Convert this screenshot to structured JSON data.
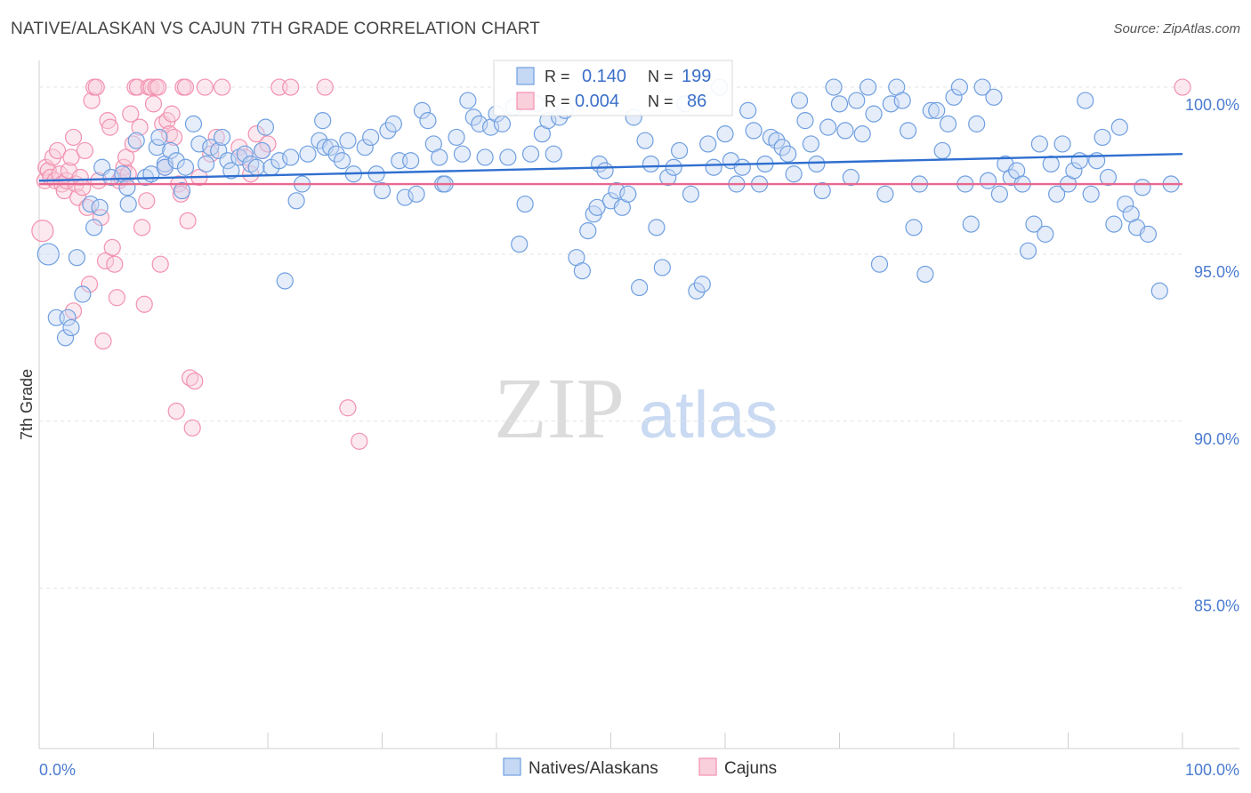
{
  "header": {
    "title": "NATIVE/ALASKAN VS CAJUN 7TH GRADE CORRELATION CHART",
    "source": "Source: ZipAtlas.com"
  },
  "watermark": {
    "zip": "ZIP",
    "atlas": "atlas"
  },
  "stats_box": {
    "rows": [
      {
        "series": "Natives/Alaskans",
        "r_label": "R =",
        "r_value": "0.140",
        "n_label": "N =",
        "n_value": "199",
        "color": "#6f9fe0"
      },
      {
        "series": "Cajuns",
        "r_label": "R =",
        "r_value": "0.004",
        "n_label": "N =",
        "n_value": "86",
        "color": "#f291b0"
      }
    ]
  },
  "chart_data": {
    "type": "scatter",
    "title": "NATIVE/ALASKAN VS CAJUN 7TH GRADE CORRELATION CHART",
    "xlabel": "",
    "ylabel": "7th Grade",
    "xlim": [
      0,
      100
    ],
    "ylim": [
      80.2,
      100.8
    ],
    "x_tick_labels": [
      "0.0%",
      "100.0%"
    ],
    "y_ticks": [
      {
        "value": 85.0,
        "label": "85.0%"
      },
      {
        "value": 90.0,
        "label": "90.0%"
      },
      {
        "value": 95.0,
        "label": "95.0%"
      },
      {
        "value": 100.0,
        "label": "100.0%"
      }
    ],
    "grid": true,
    "legend": [
      "Natives/Alaskans",
      "Cajuns"
    ],
    "legend_position": "bottom-center",
    "series": [
      {
        "name": "Natives/Alaskans",
        "color": "#6f9fe0",
        "trend": {
          "x": [
            0,
            100
          ],
          "y": [
            97.2,
            98.0
          ]
        },
        "points": [
          [
            0.8,
            95
          ],
          [
            1.5,
            93.1
          ],
          [
            2.5,
            93.1
          ],
          [
            2.3,
            92.5
          ],
          [
            2.8,
            92.8
          ],
          [
            3.3,
            94.9
          ],
          [
            3.8,
            93.8
          ],
          [
            4.5,
            96.5
          ],
          [
            4.8,
            95.8
          ],
          [
            5.3,
            96.4
          ],
          [
            5.5,
            97.6
          ],
          [
            6.3,
            97.3
          ],
          [
            7.3,
            97.4
          ],
          [
            7.7,
            97
          ],
          [
            7.8,
            96.5
          ],
          [
            8.5,
            98.4
          ],
          [
            9.3,
            97.3
          ],
          [
            9.8,
            97.4
          ],
          [
            10.3,
            98.2
          ],
          [
            10.5,
            98.5
          ],
          [
            11,
            97.7
          ],
          [
            11,
            97.6
          ],
          [
            11.5,
            98.1
          ],
          [
            12,
            97.8
          ],
          [
            12.5,
            96.9
          ],
          [
            12.8,
            97.6
          ],
          [
            13.5,
            98.9
          ],
          [
            14,
            98.3
          ],
          [
            14.6,
            97.7
          ],
          [
            15,
            98.2
          ],
          [
            15.7,
            98.1
          ],
          [
            16,
            98.5
          ],
          [
            16.5,
            97.8
          ],
          [
            16.8,
            97.5
          ],
          [
            17.5,
            97.9
          ],
          [
            18,
            98
          ],
          [
            18.5,
            97.7
          ],
          [
            19,
            97.6
          ],
          [
            19.5,
            98.1
          ],
          [
            19.8,
            98.8
          ],
          [
            20.3,
            97.6
          ],
          [
            21,
            97.8
          ],
          [
            21.5,
            94.2
          ],
          [
            22,
            97.9
          ],
          [
            22.5,
            96.6
          ],
          [
            23,
            97.1
          ],
          [
            23.5,
            98
          ],
          [
            24.5,
            98.4
          ],
          [
            24.8,
            99
          ],
          [
            25,
            98.2
          ],
          [
            25.5,
            98.2
          ],
          [
            26,
            98
          ],
          [
            26.5,
            97.8
          ],
          [
            27,
            98.4
          ],
          [
            27.5,
            97.4
          ],
          [
            28.5,
            98.2
          ],
          [
            29,
            98.5
          ],
          [
            29.5,
            97.4
          ],
          [
            30,
            96.9
          ],
          [
            30.5,
            98.7
          ],
          [
            31,
            98.9
          ],
          [
            31.5,
            97.8
          ],
          [
            32,
            96.7
          ],
          [
            32.5,
            97.8
          ],
          [
            33,
            96.8
          ],
          [
            33.5,
            99.3
          ],
          [
            34,
            99
          ],
          [
            34.5,
            98.3
          ],
          [
            35,
            97.9
          ],
          [
            35.3,
            97.1
          ],
          [
            35.5,
            97.1
          ],
          [
            36.5,
            98.5
          ],
          [
            37,
            98
          ],
          [
            37.5,
            99.6
          ],
          [
            38,
            99.1
          ],
          [
            38.5,
            98.9
          ],
          [
            39,
            97.9
          ],
          [
            39.5,
            98.8
          ],
          [
            40,
            99.2
          ],
          [
            40.5,
            98.9
          ],
          [
            41,
            97.9
          ],
          [
            41.5,
            99.4
          ],
          [
            42,
            95.3
          ],
          [
            42.5,
            96.5
          ],
          [
            43,
            98
          ],
          [
            43.5,
            99.5
          ],
          [
            44,
            98.6
          ],
          [
            44.5,
            99
          ],
          [
            45,
            98
          ],
          [
            45.5,
            99.1
          ],
          [
            46,
            99.3
          ],
          [
            47,
            94.9
          ],
          [
            47.5,
            94.5
          ],
          [
            48,
            95.7
          ],
          [
            48.5,
            96.2
          ],
          [
            48.8,
            96.4
          ],
          [
            49,
            97.7
          ],
          [
            49.5,
            97.5
          ],
          [
            50,
            96.6
          ],
          [
            50.5,
            96.9
          ],
          [
            51,
            96.4
          ],
          [
            51.5,
            96.8
          ],
          [
            52,
            99.1
          ],
          [
            52.5,
            94
          ],
          [
            53,
            98.4
          ],
          [
            53.5,
            97.7
          ],
          [
            54,
            95.8
          ],
          [
            54.5,
            94.6
          ],
          [
            55,
            97.3
          ],
          [
            55.5,
            97.6
          ],
          [
            56,
            98.1
          ],
          [
            56.5,
            99.5
          ],
          [
            57,
            96.8
          ],
          [
            57.5,
            93.9
          ],
          [
            58,
            94.1
          ],
          [
            58.5,
            98.3
          ],
          [
            59,
            97.6
          ],
          [
            59.5,
            100
          ],
          [
            60,
            98.6
          ],
          [
            60.5,
            97.8
          ],
          [
            61,
            97.1
          ],
          [
            61.5,
            97.6
          ],
          [
            62,
            99.3
          ],
          [
            62.5,
            98.7
          ],
          [
            63,
            97.1
          ],
          [
            63.5,
            97.7
          ],
          [
            64,
            98.5
          ],
          [
            64.5,
            98.4
          ],
          [
            65,
            98.2
          ],
          [
            65.5,
            98
          ],
          [
            66,
            97.4
          ],
          [
            66.5,
            99.6
          ],
          [
            67,
            99
          ],
          [
            67.5,
            98.3
          ],
          [
            68,
            97.7
          ],
          [
            68.5,
            96.9
          ],
          [
            69,
            98.8
          ],
          [
            69.5,
            100
          ],
          [
            70,
            99.5
          ],
          [
            70.5,
            98.7
          ],
          [
            71,
            97.3
          ],
          [
            71.5,
            99.6
          ],
          [
            72,
            98.6
          ],
          [
            72.5,
            100
          ],
          [
            73,
            99.2
          ],
          [
            73.5,
            94.7
          ],
          [
            74,
            96.8
          ],
          [
            74.5,
            99.5
          ],
          [
            75,
            100
          ],
          [
            75.5,
            99.6
          ],
          [
            76,
            98.7
          ],
          [
            76.5,
            95.8
          ],
          [
            77,
            97.1
          ],
          [
            77.5,
            94.4
          ],
          [
            78,
            99.3
          ],
          [
            78.5,
            99.3
          ],
          [
            79,
            98.1
          ],
          [
            79.5,
            98.9
          ],
          [
            80,
            99.7
          ],
          [
            80.5,
            100
          ],
          [
            81,
            97.1
          ],
          [
            81.5,
            95.9
          ],
          [
            82,
            98.9
          ],
          [
            82.5,
            100
          ],
          [
            83,
            97.2
          ],
          [
            83.5,
            99.7
          ],
          [
            84,
            96.8
          ],
          [
            84.5,
            97.7
          ],
          [
            85,
            97.3
          ],
          [
            85.5,
            97.5
          ],
          [
            86,
            97.1
          ],
          [
            86.5,
            95.1
          ],
          [
            87,
            95.9
          ],
          [
            87.5,
            98.3
          ],
          [
            88,
            95.6
          ],
          [
            88.5,
            97.7
          ],
          [
            89,
            96.8
          ],
          [
            89.5,
            98.3
          ],
          [
            90,
            97.1
          ],
          [
            90.5,
            97.5
          ],
          [
            91,
            97.8
          ],
          [
            91.5,
            99.6
          ],
          [
            92,
            96.8
          ],
          [
            92.5,
            97.8
          ],
          [
            93,
            98.5
          ],
          [
            93.5,
            97.3
          ],
          [
            94,
            95.9
          ],
          [
            94.5,
            98.8
          ],
          [
            95,
            96.5
          ],
          [
            95.5,
            96.2
          ],
          [
            96,
            95.8
          ],
          [
            96.5,
            97.0
          ],
          [
            97,
            95.6
          ],
          [
            98,
            93.9
          ],
          [
            99,
            97.1
          ]
        ]
      },
      {
        "name": "Cajuns",
        "color": "#f291b0",
        "trend": {
          "x": [
            0,
            100
          ],
          "y": [
            97.1,
            97.1
          ]
        },
        "points": [
          [
            0.3,
            95.7
          ],
          [
            0.5,
            97.2
          ],
          [
            0.6,
            97.6
          ],
          [
            0.8,
            97.5
          ],
          [
            1.0,
            97.3
          ],
          [
            1.2,
            97.9
          ],
          [
            1.4,
            97.2
          ],
          [
            1.6,
            98.1
          ],
          [
            1.8,
            97.4
          ],
          [
            2.0,
            97.1
          ],
          [
            2.2,
            96.9
          ],
          [
            2.4,
            97.2
          ],
          [
            2.6,
            97.5
          ],
          [
            2.8,
            97.9
          ],
          [
            3.0,
            98.5
          ],
          [
            3.2,
            97.1
          ],
          [
            3.4,
            96.7
          ],
          [
            3.6,
            97.3
          ],
          [
            3.8,
            97.0
          ],
          [
            4.0,
            98.1
          ],
          [
            4.2,
            96.4
          ],
          [
            4.4,
            94.1
          ],
          [
            4.6,
            99.6
          ],
          [
            4.8,
            100
          ],
          [
            5.0,
            100
          ],
          [
            5.2,
            97.2
          ],
          [
            5.4,
            96.1
          ],
          [
            5.6,
            92.4
          ],
          [
            5.8,
            94.8
          ],
          [
            6.0,
            99
          ],
          [
            6.2,
            98.8
          ],
          [
            6.4,
            95.2
          ],
          [
            6.6,
            94.7
          ],
          [
            6.8,
            93.7
          ],
          [
            7.0,
            97.2
          ],
          [
            7.2,
            97.3
          ],
          [
            7.4,
            97.6
          ],
          [
            7.6,
            97.9
          ],
          [
            7.8,
            97.4
          ],
          [
            8.0,
            99.2
          ],
          [
            8.2,
            98.3
          ],
          [
            8.4,
            100
          ],
          [
            8.6,
            100
          ],
          [
            8.8,
            98.8
          ],
          [
            9.0,
            95.8
          ],
          [
            9.2,
            93.5
          ],
          [
            9.4,
            96.6
          ],
          [
            9.6,
            100
          ],
          [
            9.8,
            100
          ],
          [
            10.0,
            99.5
          ],
          [
            10.2,
            100
          ],
          [
            10.4,
            100
          ],
          [
            10.6,
            94.7
          ],
          [
            10.8,
            98.9
          ],
          [
            11.0,
            97.6
          ],
          [
            11.2,
            99
          ],
          [
            11.4,
            98.6
          ],
          [
            11.6,
            99.2
          ],
          [
            11.8,
            98.5
          ],
          [
            12.0,
            90.3
          ],
          [
            12.2,
            97.1
          ],
          [
            12.4,
            96.8
          ],
          [
            12.6,
            100
          ],
          [
            12.8,
            100
          ],
          [
            13.0,
            96
          ],
          [
            13.2,
            91.3
          ],
          [
            13.4,
            89.8
          ],
          [
            13.6,
            91.2
          ],
          [
            14.0,
            97.3
          ],
          [
            14.5,
            100
          ],
          [
            15.0,
            98
          ],
          [
            15.5,
            98.5
          ],
          [
            16.0,
            100
          ],
          [
            17.5,
            98.2
          ],
          [
            18.0,
            97.9
          ],
          [
            18.5,
            97.4
          ],
          [
            19.0,
            98.6
          ],
          [
            19.5,
            98.1
          ],
          [
            20.0,
            98.3
          ],
          [
            21.0,
            100
          ],
          [
            22.0,
            100
          ],
          [
            25.0,
            100
          ],
          [
            27.0,
            90.4
          ],
          [
            28.0,
            89.4
          ],
          [
            100,
            100
          ],
          [
            3.0,
            93.3
          ]
        ]
      }
    ]
  },
  "legend": {
    "items": [
      {
        "label": "Natives/Alaskans",
        "color": "#6f9fe0"
      },
      {
        "label": "Cajuns",
        "color": "#f291b0"
      }
    ]
  }
}
